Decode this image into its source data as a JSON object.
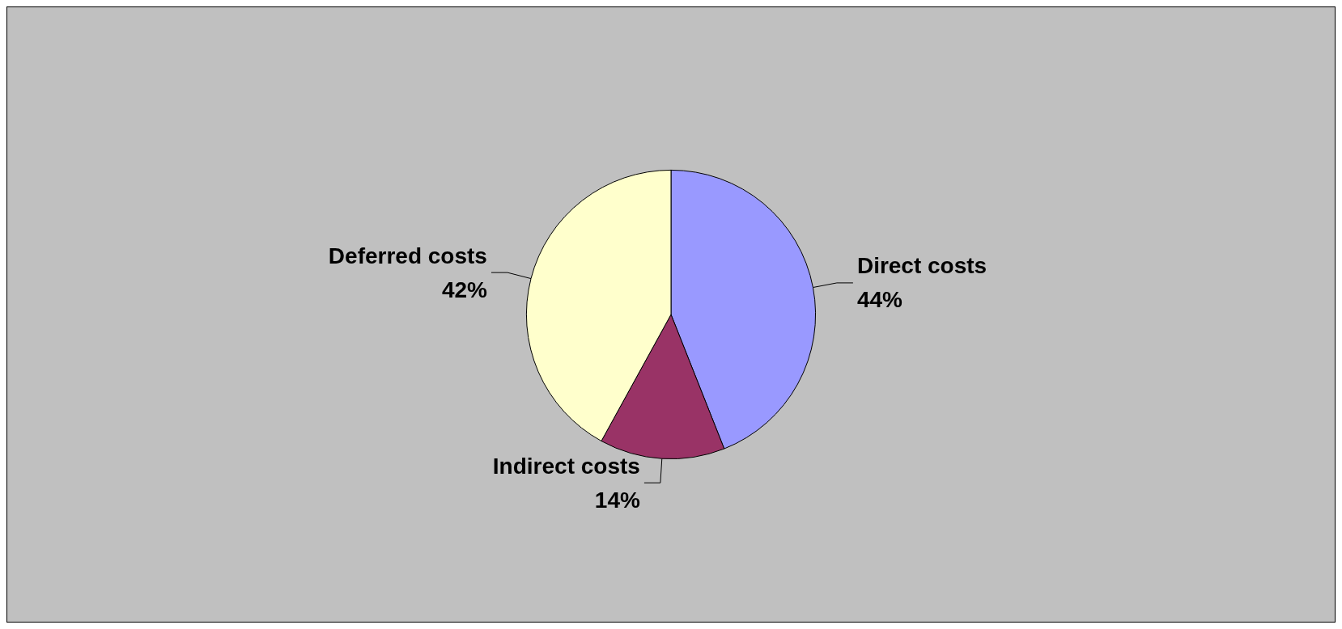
{
  "chart_data": {
    "type": "pie",
    "categories": [
      "Direct costs",
      "Indirect costs",
      "Deferred costs"
    ],
    "values": [
      44,
      14,
      42
    ],
    "value_labels": [
      "44%",
      "14%",
      "42%"
    ],
    "colors": [
      "#9999ff",
      "#993366",
      "#ffffcc"
    ],
    "legend": false
  }
}
